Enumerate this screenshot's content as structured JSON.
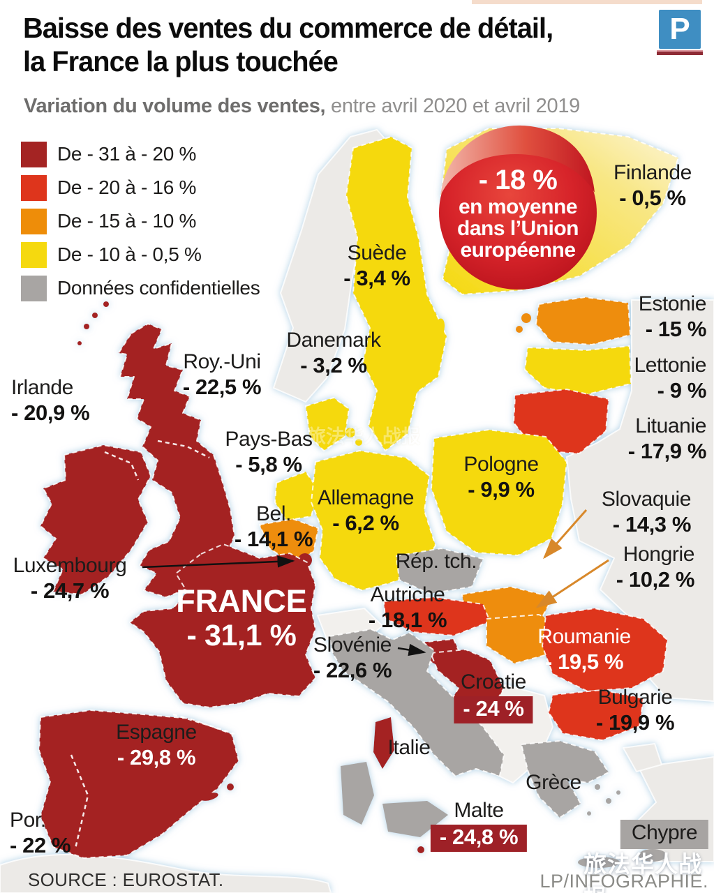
{
  "page": {
    "title_line1": "Baisse des ventes du commerce de détail,",
    "title_line2": "la France la plus touchée",
    "subtitle_bold": "Variation du volume des ventes,",
    "subtitle_rest": " entre avril 2020 et avril 2019",
    "logo_letter": "P"
  },
  "legend": {
    "items": [
      {
        "label": "De - 31 à - 20 %",
        "color": "#a42423"
      },
      {
        "label": "De - 20 à - 16 %",
        "color": "#de351c"
      },
      {
        "label": "De - 15 à - 10 %",
        "color": "#ee8d09"
      },
      {
        "label": "De - 10 à - 0,5 %",
        "color": "#f5d90f"
      },
      {
        "label": "Données confidentielles",
        "color": "#a8a5a3"
      }
    ]
  },
  "badge": {
    "value": "- 18 %",
    "lines": [
      "en moyenne",
      "dans l’Union",
      "européenne"
    ],
    "color_center": "#e8463c",
    "color_edge": "#b8121c"
  },
  "labels": [
    {
      "id": "finlande",
      "name": "Finlande",
      "value": "- 0,5 %"
    },
    {
      "id": "suede",
      "name": "Suède",
      "value": "- 3,4 %"
    },
    {
      "id": "estonie",
      "name": "Estonie",
      "value": "- 15 %"
    },
    {
      "id": "lettonie",
      "name": "Lettonie",
      "value": "- 9 %"
    },
    {
      "id": "lituanie",
      "name": "Lituanie",
      "value": "- 17,9 %"
    },
    {
      "id": "danemark",
      "name": "Danemark",
      "value": "- 3,2 %"
    },
    {
      "id": "roy_uni",
      "name": "Roy.-Uni",
      "value": "- 22,5 %"
    },
    {
      "id": "irlande",
      "name": "Irlande",
      "value": "- 20,9 %"
    },
    {
      "id": "pays_bas",
      "name": "Pays-Bas",
      "value": "- 5,8 %"
    },
    {
      "id": "pologne",
      "name": "Pologne",
      "value": "- 9,9 %"
    },
    {
      "id": "allemagne",
      "name": "Allemagne",
      "value": "- 6,2 %"
    },
    {
      "id": "bel",
      "name": "Bel.",
      "value": "- 14,1 %"
    },
    {
      "id": "slovaquie",
      "name": "Slovaquie",
      "value": "- 14,3 %"
    },
    {
      "id": "rep_tch",
      "name": "Rép. tch.",
      "value": ""
    },
    {
      "id": "hongrie",
      "name": "Hongrie",
      "value": "- 10,2 %"
    },
    {
      "id": "luxembourg",
      "name": "Luxembourg",
      "value": "- 24,7 %"
    },
    {
      "id": "autriche",
      "name": "Autriche",
      "value": "- 18,1 %"
    },
    {
      "id": "france",
      "name": "FRANCE",
      "value": "- 31,1 %"
    },
    {
      "id": "slovenie",
      "name": "Slovénie",
      "value": "- 22,6 %"
    },
    {
      "id": "croatie",
      "name": "Croatie",
      "value": "- 24 %"
    },
    {
      "id": "roumanie",
      "name": "Roumanie",
      "value": "- 19,5 %"
    },
    {
      "id": "bulgarie",
      "name": "Bulgarie",
      "value": "- 19,9 %"
    },
    {
      "id": "espagne",
      "name": "Espagne",
      "value": "- 29,8 %"
    },
    {
      "id": "portugal",
      "name": "Por.",
      "value": "- 22 %"
    },
    {
      "id": "italie",
      "name": "Italie",
      "value": ""
    },
    {
      "id": "grece",
      "name": "Grèce",
      "value": ""
    },
    {
      "id": "malte",
      "name": "Malte",
      "value": "- 24,8 %"
    },
    {
      "id": "chypre",
      "name": "Chypre",
      "value": ""
    }
  ],
  "footer": {
    "source": "SOURCE : EUROSTAT.",
    "credit": "LP/INFOGRAPHIE."
  },
  "watermark": {
    "text": "旅法华人战报"
  },
  "chart_data": {
    "type": "choropleth-map",
    "title": "Baisse des ventes du commerce de détail, la France la plus touchée",
    "subtitle": "Variation du volume des ventes, entre avril 2020 et avril 2019",
    "unit": "%",
    "eu_average": -18,
    "categories": [
      "De - 31 à - 20 %",
      "De - 20 à - 16 %",
      "De - 15 à - 10 %",
      "De - 10 à - 0,5 %",
      "Données confidentielles"
    ],
    "values": [
      {
        "country": "France",
        "value": -31.1
      },
      {
        "country": "Espagne",
        "value": -29.8
      },
      {
        "country": "Malte",
        "value": -24.8
      },
      {
        "country": "Luxembourg",
        "value": -24.7
      },
      {
        "country": "Croatie",
        "value": -24
      },
      {
        "country": "Slovénie",
        "value": -22.6
      },
      {
        "country": "Roy.-Uni",
        "value": -22.5
      },
      {
        "country": "Portugal",
        "value": -22
      },
      {
        "country": "Irlande",
        "value": -20.9
      },
      {
        "country": "Bulgarie",
        "value": -19.9
      },
      {
        "country": "Roumanie",
        "value": -19.5
      },
      {
        "country": "Autriche",
        "value": -18.1
      },
      {
        "country": "Lituanie",
        "value": -17.9
      },
      {
        "country": "Estonie",
        "value": -15
      },
      {
        "country": "Slovaquie",
        "value": -14.3
      },
      {
        "country": "Belgique",
        "value": -14.1
      },
      {
        "country": "Hongrie",
        "value": -10.2
      },
      {
        "country": "Pologne",
        "value": -9.9
      },
      {
        "country": "Lettonie",
        "value": -9
      },
      {
        "country": "Allemagne",
        "value": -6.2
      },
      {
        "country": "Pays-Bas",
        "value": -5.8
      },
      {
        "country": "Suède",
        "value": -3.4
      },
      {
        "country": "Danemark",
        "value": -3.2
      },
      {
        "country": "Finlande",
        "value": -0.5
      },
      {
        "country": "Italie",
        "value": null
      },
      {
        "country": "Grèce",
        "value": null
      },
      {
        "country": "Rép. tch.",
        "value": null
      },
      {
        "country": "Chypre",
        "value": null
      }
    ]
  }
}
